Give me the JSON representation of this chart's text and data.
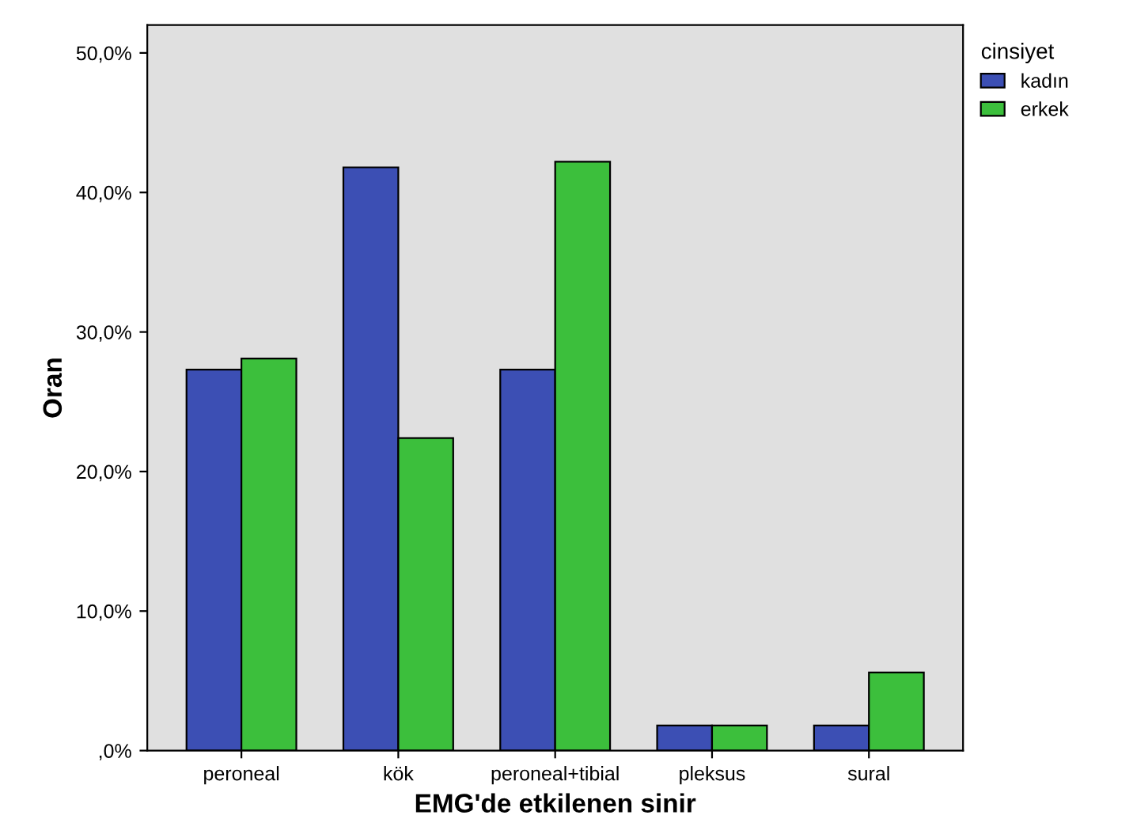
{
  "chart_data": {
    "type": "bar",
    "xlabel": "EMG'de etkilenen sinir",
    "ylabel": "Oran",
    "legend_title": "cinsiyet",
    "legend": "top right",
    "categories": [
      "peroneal",
      "kök",
      "peroneal+tibial",
      "pleksus",
      "sural"
    ],
    "series": [
      {
        "name": "kadın",
        "color": "#3c4fb4",
        "values": [
          27.3,
          41.8,
          27.3,
          1.8,
          1.8
        ]
      },
      {
        "name": "erkek",
        "color": "#3cbf3c",
        "values": [
          28.1,
          22.4,
          42.2,
          1.8,
          5.6
        ]
      }
    ],
    "ylim": [
      0,
      52
    ],
    "yticks": [
      {
        "value": 0,
        "label": ",0%"
      },
      {
        "value": 10,
        "label": "10,0%"
      },
      {
        "value": 20,
        "label": "20,0%"
      },
      {
        "value": 30,
        "label": "30,0%"
      },
      {
        "value": 40,
        "label": "40,0%"
      },
      {
        "value": 50,
        "label": "50,0%"
      }
    ],
    "grid": false
  }
}
